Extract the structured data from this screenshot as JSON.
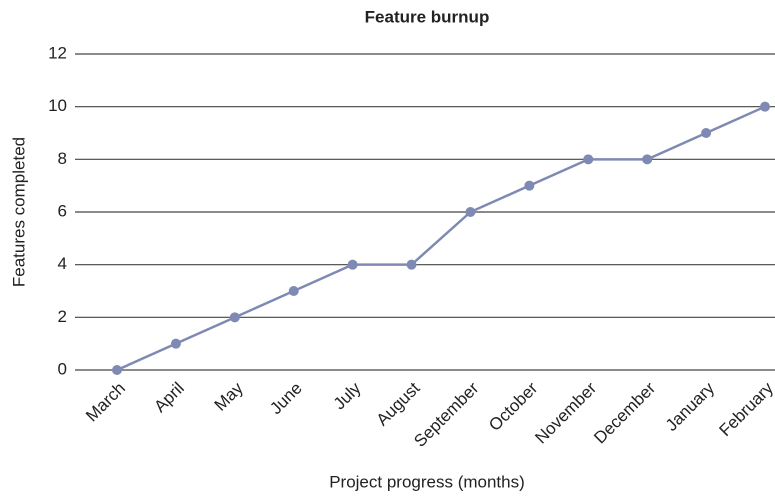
{
  "chart_data": {
    "type": "line",
    "title": "Feature burnup",
    "x_label": "Project progress (months)",
    "y_label": "Features completed",
    "categories": [
      "March",
      "April",
      "May",
      "June",
      "July",
      "August",
      "September",
      "October",
      "November",
      "December",
      "January",
      "February"
    ],
    "series": [
      {
        "name": "Features completed",
        "color": "#7f8ab4",
        "values": [
          0,
          1,
          2,
          3,
          4,
          4,
          6,
          7,
          8,
          8,
          9,
          10
        ]
      }
    ],
    "ylim": [
      0,
      12
    ],
    "yticks": [
      0,
      2,
      4,
      6,
      8,
      10,
      12
    ],
    "grid": true
  }
}
